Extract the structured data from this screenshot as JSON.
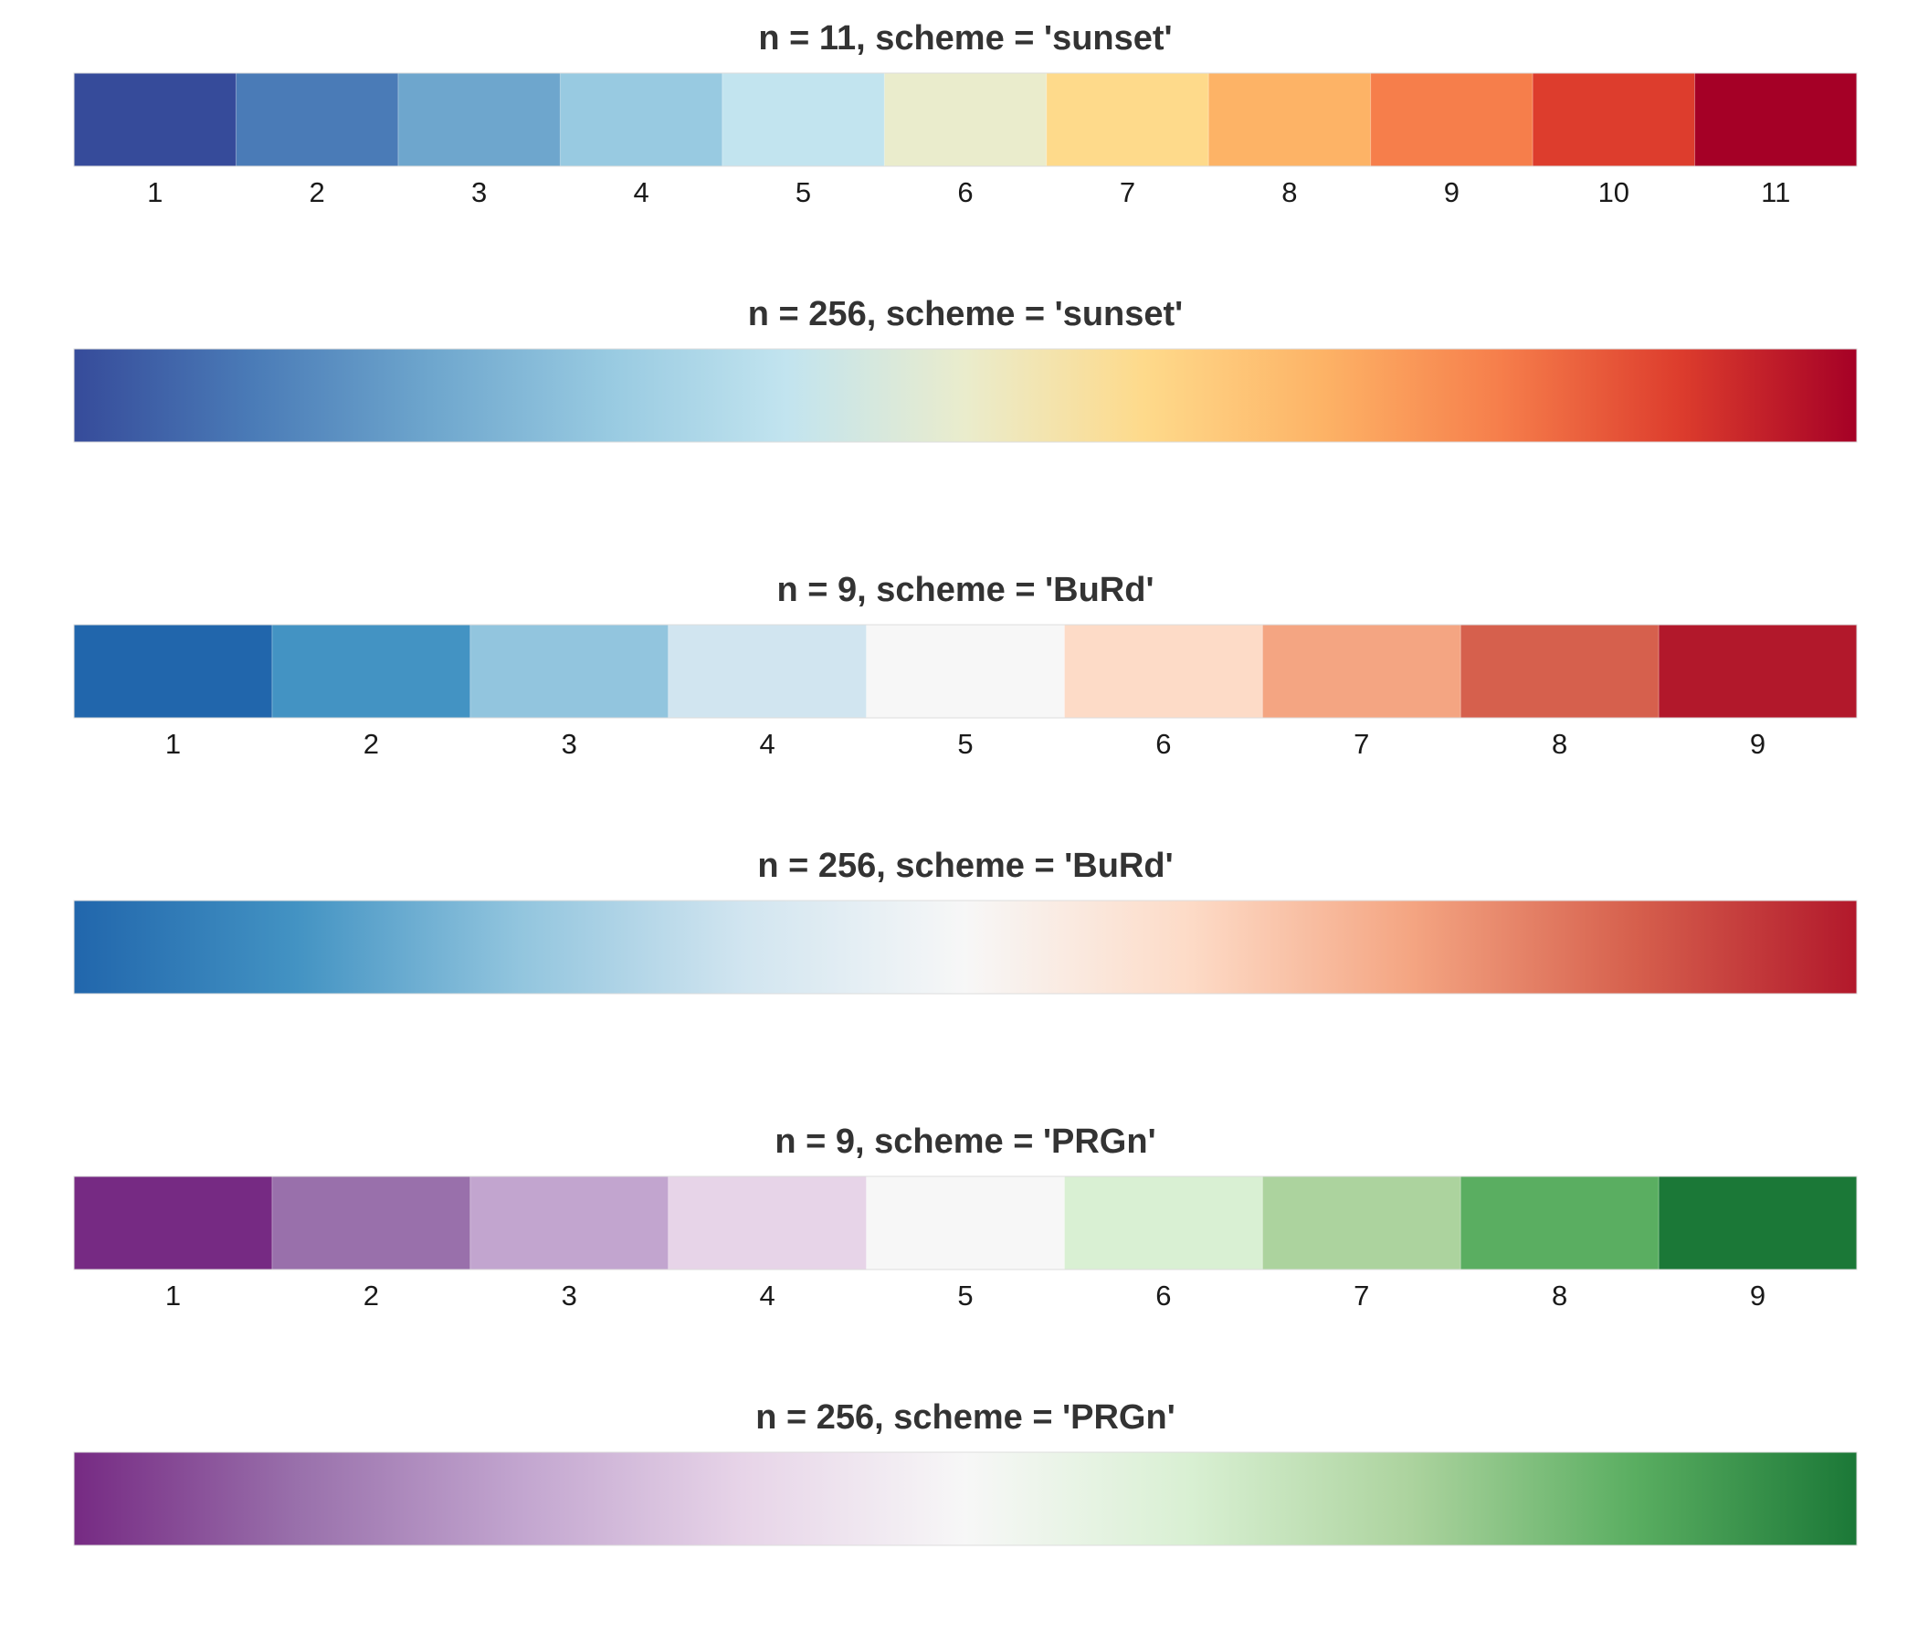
{
  "chart_data": [
    {
      "type": "heatmap",
      "title": "n = 11, scheme = 'sunset'",
      "n": 11,
      "scheme": "sunset",
      "discrete": true,
      "tick_labels": [
        "1",
        "2",
        "3",
        "4",
        "5",
        "6",
        "7",
        "8",
        "9",
        "10",
        "11"
      ],
      "colors": [
        "#364B9A",
        "#4A7BB7",
        "#6EA6CD",
        "#98CAE1",
        "#C2E4EF",
        "#EAECCC",
        "#FEDA8B",
        "#FDB366",
        "#F67E4B",
        "#DD3D2D",
        "#A50026"
      ]
    },
    {
      "type": "heatmap",
      "title": "n = 256, scheme = 'sunset'",
      "n": 256,
      "scheme": "sunset",
      "discrete": false,
      "tick_labels": [],
      "colors": [
        "#364B9A",
        "#4A7BB7",
        "#6EA6CD",
        "#98CAE1",
        "#C2E4EF",
        "#EAECCC",
        "#FEDA8B",
        "#FDB366",
        "#F67E4B",
        "#DD3D2D",
        "#A50026"
      ]
    },
    {
      "type": "heatmap",
      "title": "n = 9, scheme = 'BuRd'",
      "n": 9,
      "scheme": "BuRd",
      "discrete": true,
      "tick_labels": [
        "1",
        "2",
        "3",
        "4",
        "5",
        "6",
        "7",
        "8",
        "9"
      ],
      "colors": [
        "#2166AC",
        "#4393C3",
        "#92C5DE",
        "#D1E5F0",
        "#F7F7F7",
        "#FDDBC7",
        "#F4A582",
        "#D6604D",
        "#B2182B"
      ]
    },
    {
      "type": "heatmap",
      "title": "n = 256, scheme = 'BuRd'",
      "n": 256,
      "scheme": "BuRd",
      "discrete": false,
      "tick_labels": [],
      "colors": [
        "#2166AC",
        "#4393C3",
        "#92C5DE",
        "#D1E5F0",
        "#F7F7F7",
        "#FDDBC7",
        "#F4A582",
        "#D6604D",
        "#B2182B"
      ]
    },
    {
      "type": "heatmap",
      "title": "n = 9, scheme = 'PRGn'",
      "n": 9,
      "scheme": "PRGn",
      "discrete": true,
      "tick_labels": [
        "1",
        "2",
        "3",
        "4",
        "5",
        "6",
        "7",
        "8",
        "9"
      ],
      "colors": [
        "#762A83",
        "#9970AB",
        "#C2A5CF",
        "#E7D4E8",
        "#F7F7F7",
        "#D9F0D3",
        "#ACD39E",
        "#5AAE61",
        "#1B7837"
      ]
    },
    {
      "type": "heatmap",
      "title": "n = 256, scheme = 'PRGn'",
      "n": 256,
      "scheme": "PRGn",
      "discrete": false,
      "tick_labels": [],
      "colors": [
        "#762A83",
        "#9970AB",
        "#C2A5CF",
        "#E7D4E8",
        "#F7F7F7",
        "#D9F0D3",
        "#ACD39E",
        "#5AAE61",
        "#1B7837"
      ]
    }
  ]
}
